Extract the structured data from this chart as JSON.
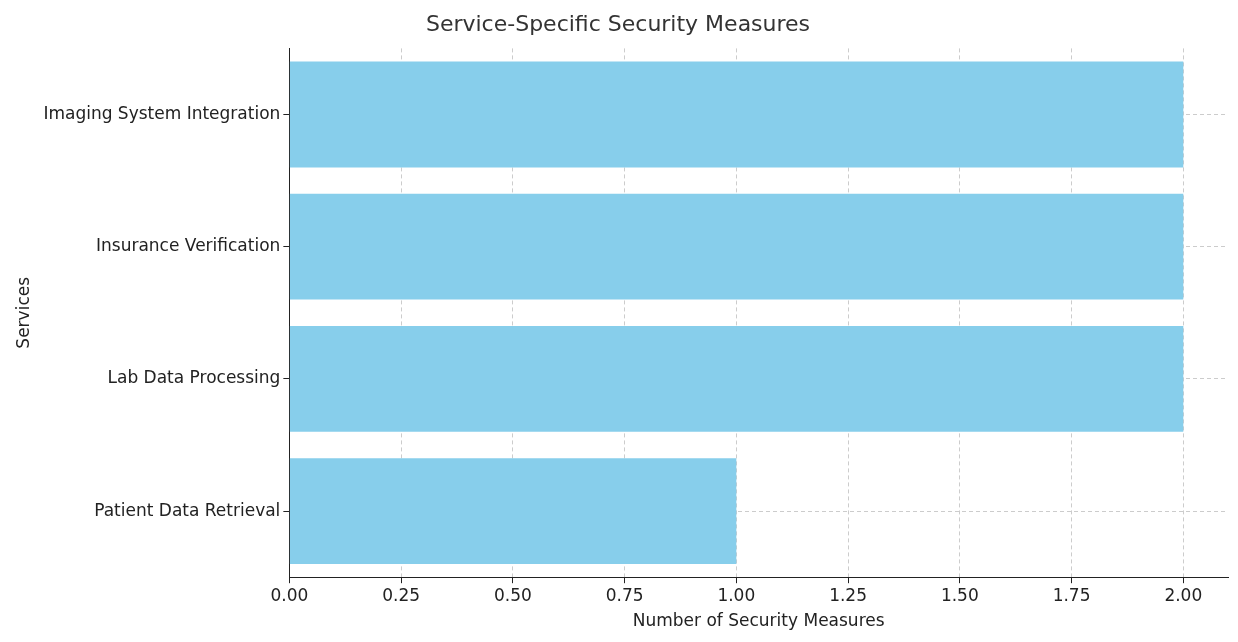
{
  "chart_data": {
    "type": "bar",
    "orientation": "horizontal",
    "title": "Service-Specific Security Measures",
    "xlabel": "Number of Security Measures",
    "ylabel": "Services",
    "categories": [
      "Imaging System Integration",
      "Insurance Verification",
      "Lab Data Processing",
      "Patient Data Retrieval"
    ],
    "values": [
      2,
      2,
      2,
      1
    ],
    "color": "#87ceeb",
    "xlim": [
      0,
      2.1
    ],
    "xticks": [
      {
        "value": 0,
        "label": "0.00"
      },
      {
        "value": 0.25,
        "label": "0.25"
      },
      {
        "value": 0.5,
        "label": "0.50"
      },
      {
        "value": 0.75,
        "label": "0.75"
      },
      {
        "value": 1,
        "label": "1.00"
      },
      {
        "value": 1.25,
        "label": "1.25"
      },
      {
        "value": 1.5,
        "label": "1.50"
      },
      {
        "value": 1.75,
        "label": "1.75"
      },
      {
        "value": 2,
        "label": "2.00"
      }
    ],
    "grid": true,
    "legend": false
  }
}
